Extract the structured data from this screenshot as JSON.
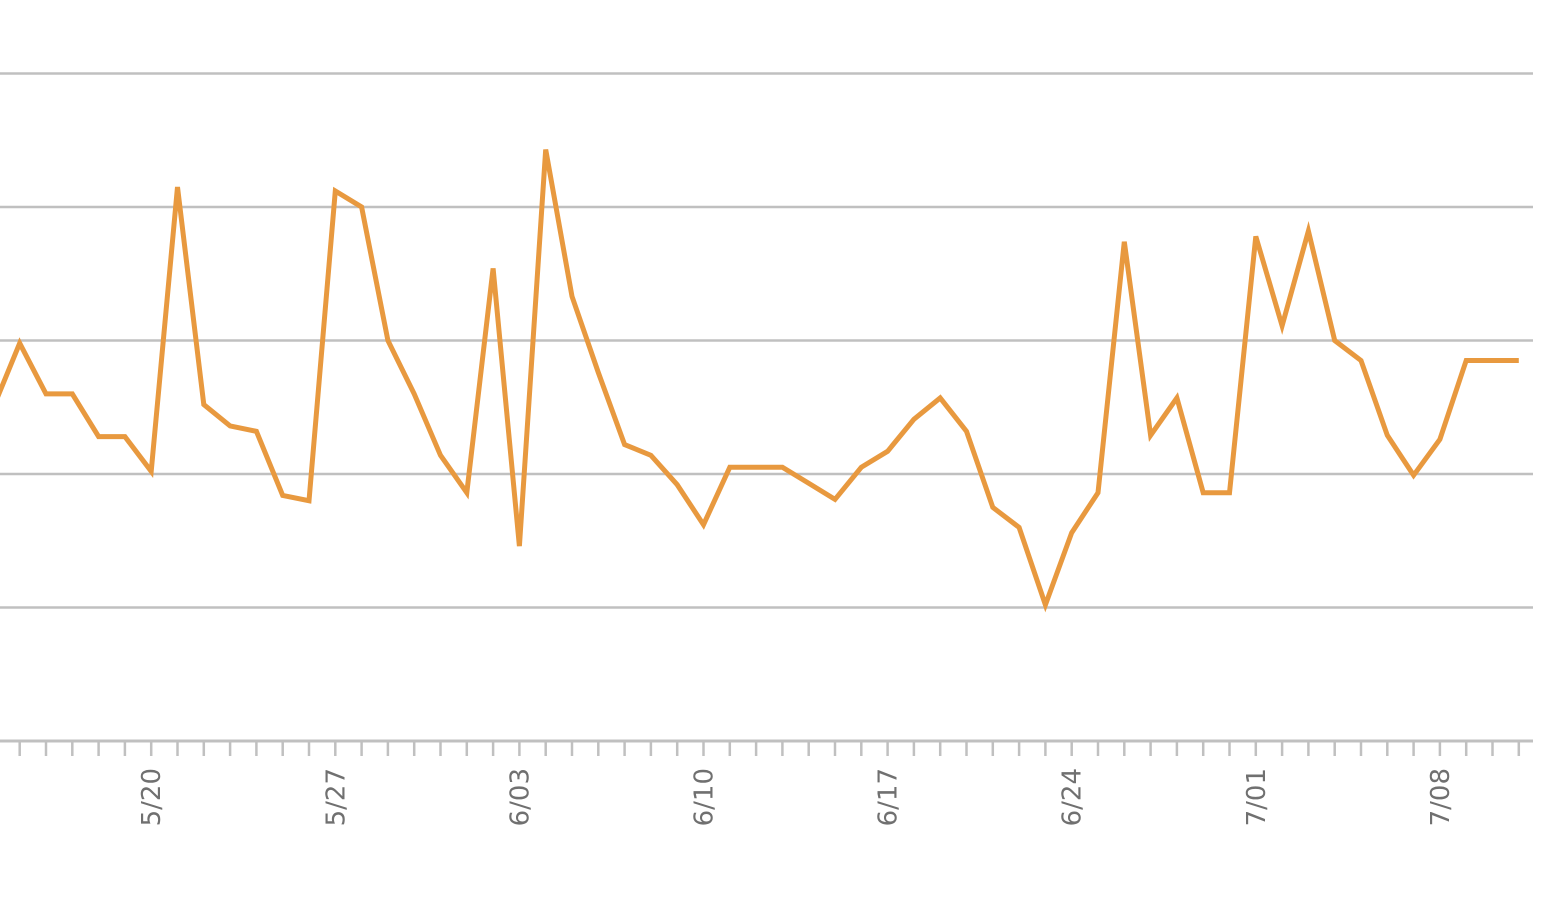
{
  "chart_data": {
    "type": "line",
    "title": "",
    "xlabel": "",
    "ylabel": "",
    "x_start": "5/14",
    "x_end": "7/12",
    "tick_labels": [
      "5/20",
      "5/27",
      "6/03",
      "6/10",
      "6/17",
      "6/24",
      "7/01",
      "7/08"
    ],
    "ylim": [
      0,
      5
    ],
    "grid": true,
    "y_tick_labels_visible": false,
    "legend": "none",
    "colors": {
      "line": "#e8993f",
      "grid": "#c0c0c0",
      "tick_label": "#707070"
    },
    "series": [
      {
        "values": [
          2.5,
          2.98,
          2.6,
          2.6,
          2.28,
          2.28,
          2.02,
          4.15,
          2.52,
          2.36,
          2.32,
          1.84,
          1.8,
          4.12,
          4.0,
          3.0,
          2.6,
          2.14,
          1.86,
          3.54,
          1.46,
          4.43,
          3.33,
          2.76,
          2.22,
          2.14,
          1.92,
          1.62,
          2.05,
          2.05,
          2.05,
          1.93,
          1.81,
          2.05,
          2.17,
          2.41,
          2.57,
          2.32,
          1.75,
          1.6,
          1.02,
          1.56,
          1.86,
          3.74,
          2.29,
          2.57,
          1.86,
          1.86,
          3.78,
          3.11,
          3.82,
          3.0,
          2.85,
          2.29,
          1.99,
          2.26,
          2.85,
          2.85,
          2.85
        ]
      }
    ]
  }
}
